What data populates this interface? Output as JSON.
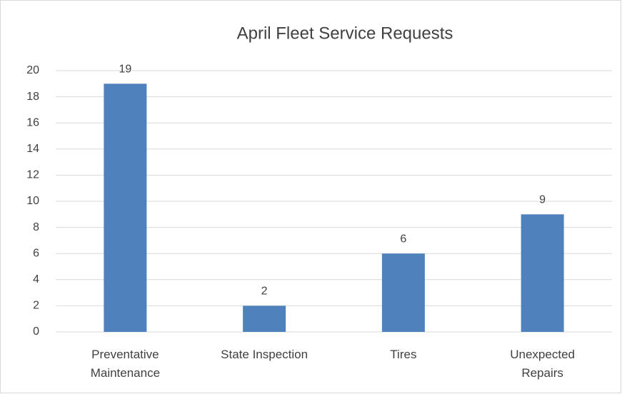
{
  "chart_data": {
    "type": "bar",
    "title": "April Fleet Service Requests",
    "categories": [
      "Preventative Maintenance",
      "State Inspection",
      "Tires",
      "Unexpected Repairs"
    ],
    "values": [
      19,
      2,
      6,
      9
    ],
    "color": "#4f81bd",
    "ylim": [
      0,
      20
    ],
    "yticks": [
      0,
      2,
      4,
      6,
      8,
      10,
      12,
      14,
      16,
      18,
      20
    ],
    "grid": true
  }
}
